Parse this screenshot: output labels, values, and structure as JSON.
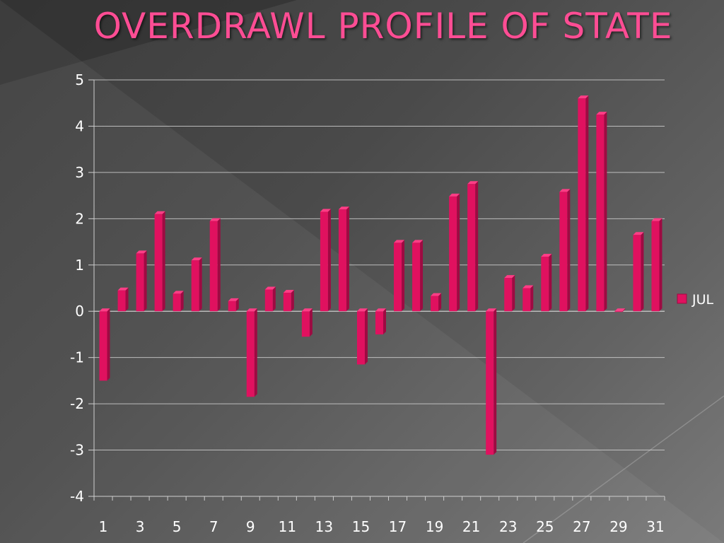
{
  "slide": {
    "title": "OVERDRAWL PROFILE OF STATE"
  },
  "colors": {
    "bar": "#e0115f",
    "bar_dark": "#9e0a42",
    "bar_light": "#ff3d86",
    "title": "#ff4d94",
    "grid": "#cfcfcf",
    "text": "#ffffff"
  },
  "chart_data": {
    "type": "bar",
    "title": "",
    "xlabel": "",
    "ylabel": "",
    "ylim": [
      -4,
      5
    ],
    "yticks": [
      5,
      4,
      3,
      2,
      1,
      0,
      -1,
      -2,
      -3,
      -4
    ],
    "grid": true,
    "legend_position": "right",
    "categories": [
      "1",
      "2",
      "3",
      "4",
      "5",
      "6",
      "7",
      "8",
      "9",
      "10",
      "11",
      "12",
      "13",
      "14",
      "15",
      "16",
      "17",
      "18",
      "19",
      "20",
      "21",
      "22",
      "23",
      "24",
      "25",
      "26",
      "27",
      "28",
      "29",
      "30",
      "31"
    ],
    "xtick_labels": [
      "1",
      "3",
      "5",
      "7",
      "9",
      "11",
      "13",
      "15",
      "17",
      "19",
      "21",
      "23",
      "25",
      "27",
      "29",
      "31"
    ],
    "series": [
      {
        "name": "JUL",
        "values": [
          -1.5,
          0.45,
          1.25,
          2.1,
          0.38,
          1.1,
          1.95,
          0.22,
          -1.85,
          0.47,
          0.4,
          -0.55,
          2.15,
          2.2,
          -1.15,
          -0.5,
          1.48,
          1.48,
          0.33,
          2.48,
          2.75,
          -3.1,
          0.72,
          0.5,
          1.18,
          2.58,
          4.6,
          4.25,
          0.0,
          1.65,
          1.95
        ]
      }
    ]
  }
}
